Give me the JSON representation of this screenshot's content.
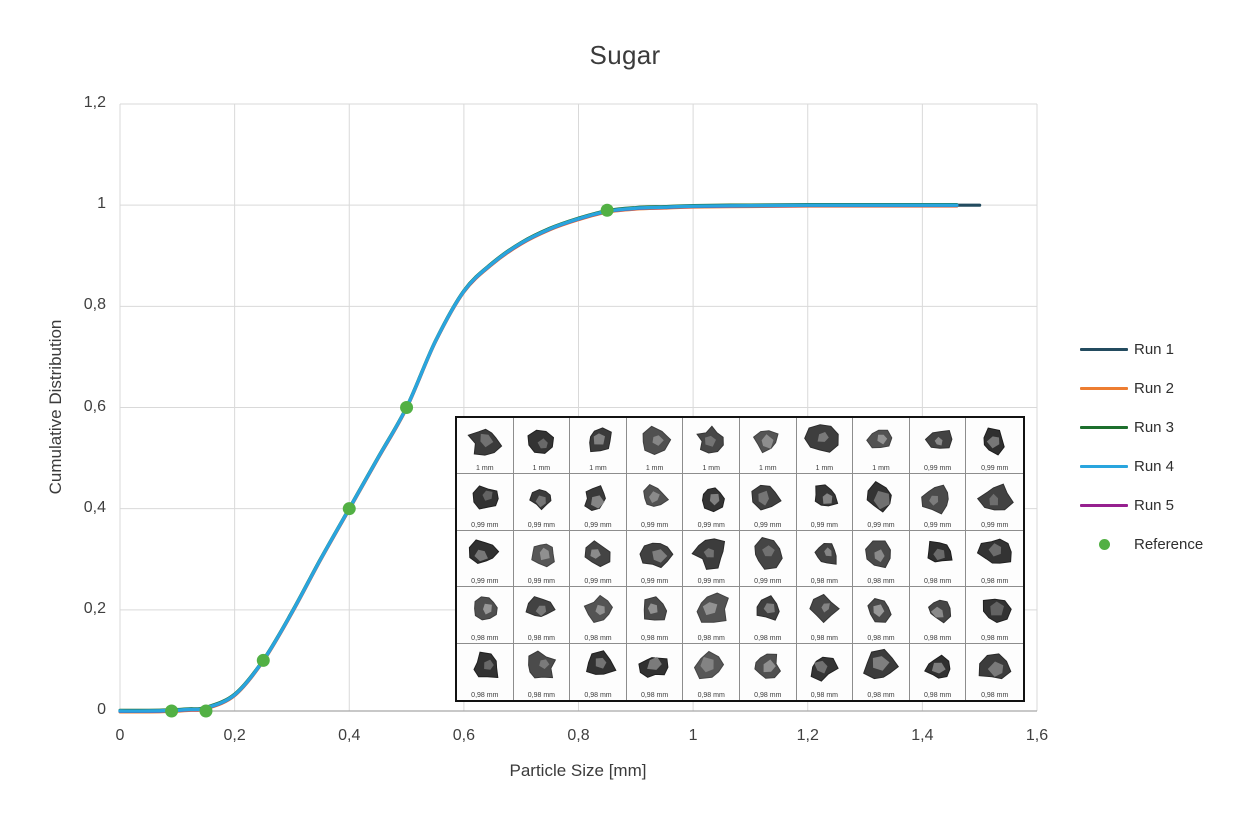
{
  "chart_data": {
    "type": "line",
    "title": "Sugar",
    "xlabel": "Particle Size [mm]",
    "ylabel": "Cumulative Distribution",
    "xlim": [
      0,
      1.6
    ],
    "ylim": [
      0,
      1.2
    ],
    "grid": true,
    "legend_position": "right",
    "x_ticks": {
      "values": [
        0,
        0.2,
        0.4,
        0.6,
        0.8,
        1,
        1.2,
        1.4,
        1.6
      ],
      "labels": [
        "0",
        "0,2",
        "0,4",
        "0,6",
        "0,8",
        "1",
        "1,2",
        "1,4",
        "1,6"
      ]
    },
    "y_ticks": {
      "values": [
        0,
        0.2,
        0.4,
        0.6,
        0.8,
        1,
        1.2
      ],
      "labels": [
        "0",
        "0,2",
        "0,4",
        "0,6",
        "0,8",
        "1",
        "1,2"
      ]
    },
    "base_curve": {
      "x": [
        0,
        0.05,
        0.09,
        0.12,
        0.15,
        0.2,
        0.25,
        0.3,
        0.35,
        0.4,
        0.45,
        0.5,
        0.55,
        0.6,
        0.65,
        0.7,
        0.75,
        0.8,
        0.85,
        0.9,
        0.95,
        1.0,
        1.1,
        1.2,
        1.3,
        1.4,
        1.46,
        1.5
      ],
      "y": [
        0,
        0,
        0.001,
        0.003,
        0.006,
        0.032,
        0.1,
        0.195,
        0.3,
        0.4,
        0.5,
        0.6,
        0.73,
        0.83,
        0.885,
        0.925,
        0.953,
        0.973,
        0.988,
        0.994,
        0.996,
        0.998,
        0.999,
        1,
        1,
        1,
        1,
        1
      ]
    },
    "series": [
      {
        "name": "Run 1",
        "color": "#234B5F",
        "x_end": 1.5
      },
      {
        "name": "Run 2",
        "color": "#ED7D31",
        "x_end": 1.46
      },
      {
        "name": "Run 3",
        "color": "#1D6F2D",
        "x_end": 1.46
      },
      {
        "name": "Run 4",
        "color": "#29A5DE",
        "x_end": 1.46
      },
      {
        "name": "Run 5",
        "color": "#96208F",
        "x_end": 1.46
      }
    ],
    "reference": {
      "name": "Reference",
      "color": "#52B044",
      "points": [
        [
          0.09,
          0
        ],
        [
          0.15,
          0
        ],
        [
          0.25,
          0.1
        ],
        [
          0.4,
          0.4
        ],
        [
          0.5,
          0.6
        ],
        [
          0.85,
          0.99
        ]
      ]
    }
  },
  "inset": {
    "rows": 5,
    "cols": 10,
    "labels": [
      [
        "1 mm",
        "1 mm",
        "1 mm",
        "1 mm",
        "1 mm",
        "1 mm",
        "1 mm",
        "1 mm",
        "0,99 mm",
        "0,99 mm"
      ],
      [
        "0,99 mm",
        "0,99 mm",
        "0,99 mm",
        "0,99 mm",
        "0,99 mm",
        "0,99 mm",
        "0,99 mm",
        "0,99 mm",
        "0,99 mm",
        "0,99 mm"
      ],
      [
        "0,99 mm",
        "0,99 mm",
        "0,99 mm",
        "0,99 mm",
        "0,99 mm",
        "0,99 mm",
        "0,98 mm",
        "0,98 mm",
        "0,98 mm",
        "0,98 mm"
      ],
      [
        "0,98 mm",
        "0,98 mm",
        "0,98 mm",
        "0,98 mm",
        "0,98 mm",
        "0,98 mm",
        "0,98 mm",
        "0,98 mm",
        "0,98 mm",
        "0,98 mm"
      ],
      [
        "0,98 mm",
        "0,98 mm",
        "0,98 mm",
        "0,98 mm",
        "0,98 mm",
        "0,98 mm",
        "0,98 mm",
        "0,98 mm",
        "0,98 mm",
        "0,98 mm"
      ]
    ]
  },
  "colors": {
    "grid": "#d9d9d9",
    "axis": "#a6a6a6",
    "text": "#3b3b3b"
  }
}
